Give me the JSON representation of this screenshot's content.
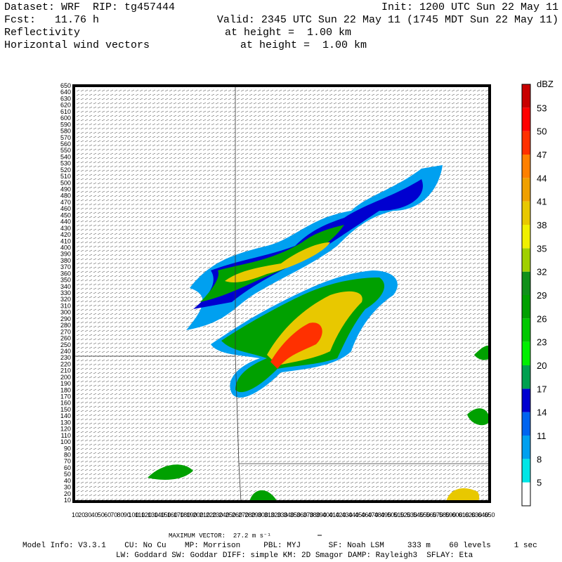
{
  "header": {
    "dataset": "Dataset: WRF  RIP: tg457444",
    "init": "Init: 1200 UTC Sun 22 May 11",
    "fcst": "Fcst:   11.76 h",
    "valid": "Valid: 2345 UTC Sun 22 May 11 (1745 MDT Sun 22 May 11)",
    "field1": "Reflectivity",
    "field1_level": "at height =  1.00 km",
    "field2": "Horizontal wind vectors",
    "field2_level": "at height =  1.00 km"
  },
  "plot": {
    "y_ticks": [
      10,
      20,
      30,
      40,
      50,
      60,
      70,
      80,
      90,
      100,
      110,
      120,
      130,
      140,
      150,
      160,
      170,
      180,
      190,
      200,
      210,
      220,
      230,
      240,
      250,
      260,
      270,
      280,
      290,
      300,
      310,
      320,
      330,
      340,
      350,
      360,
      370,
      380,
      390,
      400,
      410,
      420,
      430,
      440,
      450,
      460,
      470,
      480,
      490,
      500,
      510,
      520,
      530,
      540,
      550,
      560,
      570,
      580,
      590,
      600,
      610,
      620,
      630,
      640,
      650
    ],
    "x_ticks": [
      10,
      20,
      30,
      40,
      50,
      60,
      70,
      80,
      90,
      100,
      110,
      120,
      130,
      140,
      150,
      160,
      170,
      180,
      190,
      200,
      210,
      220,
      230,
      240,
      250,
      260,
      270,
      280,
      290,
      300,
      310,
      320,
      330,
      340,
      350,
      360,
      370,
      380,
      390,
      400,
      410,
      420,
      430,
      440,
      450,
      460,
      470,
      480,
      490,
      500,
      510,
      520,
      530,
      540,
      550,
      560,
      570,
      580,
      590,
      600,
      610,
      620,
      630,
      640,
      650
    ]
  },
  "colorbar": {
    "label": "dBZ",
    "levels": [
      5,
      8,
      11,
      14,
      17,
      20,
      23,
      26,
      29,
      32,
      35,
      38,
      41,
      44,
      47,
      50,
      53
    ],
    "colors": [
      "#ffffff",
      "#00e6e6",
      "#00a0f0",
      "#0064f0",
      "#0000d0",
      "#00a050",
      "#00f000",
      "#00c800",
      "#00a000",
      "#10901a",
      "#a0d000",
      "#f0f000",
      "#e8c800",
      "#f0a000",
      "#ff8000",
      "#ff3000",
      "#ff0000",
      "#c80000"
    ]
  },
  "footer": {
    "max_vector": "MAXIMUM VECTOR:  27.2 m s⁻¹",
    "model_info": "Model Info: V3.3.1    CU: No Cu    MP: Morrison     PBL: MYJ      SF: Noah LSM     333 m    60 levels     1 sec",
    "physics": "LW: Goddard SW: Goddar DIFF: simple KM: 2D Smagor DAMP: Rayleigh3  SFLAY: Eta"
  }
}
